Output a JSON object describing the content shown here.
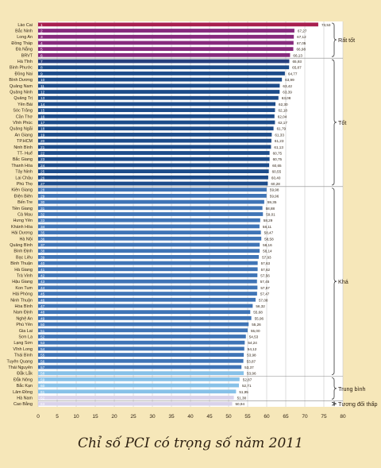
{
  "chart_data": {
    "type": "bar",
    "orientation": "horizontal",
    "title": "Chỉ số PCI có trọng số năm 2011",
    "xlim": [
      0,
      80
    ],
    "x_ticks": [
      "0",
      "5",
      "10",
      "15",
      "20",
      "25",
      "30",
      "35",
      "40",
      "45",
      "50",
      "55",
      "60",
      "65",
      "70",
      "75",
      "80"
    ],
    "grid": true,
    "categories": [
      "Lào Cai",
      "Bắc Ninh",
      "Long An",
      "Đồng Tháp",
      "Đà Nẵng",
      "BRVT",
      "Hà Tĩnh",
      "Bình Phước",
      "Đồng Nai",
      "Bình Dương",
      "Quảng Nam",
      "Quảng Ninh",
      "Quảng Trị",
      "Yên Bái",
      "Sóc Trăng",
      "Cần Thơ",
      "Vĩnh Phúc",
      "Quảng Ngãi",
      "An Giang",
      "TP.HCM",
      "Ninh Bình",
      "TT- Huế",
      "Bắc Giang",
      "Thanh Hóa",
      "Tây Ninh",
      "Lai Châu",
      "Phú Thọ",
      "Kiên Giang",
      "Điện Biên",
      "Bến Tre",
      "Tiền Giang",
      "Cà Mau",
      "Hưng Yên",
      "Khánh Hòa",
      "Hải Dương",
      "Hà Nội",
      "Quảng Bình",
      "Bình Định",
      "Bạc Liêu",
      "Bình Thuận",
      "Hà Giang",
      "Trà Vinh",
      "Hậu Giang",
      "Kon Tum",
      "Hải Phòng",
      "Ninh Thuận",
      "Hòa Bình",
      "Nam Định",
      "Nghệ An",
      "Phú Yên",
      "Gia Lai",
      "Sơn La",
      "Lạng Sơn",
      "Vĩnh Long",
      "Thái Bình",
      "Tuyên Quang",
      "Thái Nguyên",
      "Đắk Lắk",
      "Đắk Nông",
      "Bắc Kạn",
      "Lâm Đồng",
      "Hà Nam",
      "Cao Bằng"
    ],
    "ranks": [
      "1",
      "2",
      "3",
      "4",
      "5",
      "6",
      "7",
      "8",
      "9",
      "10",
      "11",
      "12",
      "13",
      "14",
      "15",
      "16",
      "17",
      "18",
      "19",
      "20",
      "21",
      "22",
      "23",
      "24",
      "25",
      "26",
      "27",
      "28",
      "29",
      "30",
      "31",
      "32",
      "33",
      "34",
      "35",
      "36",
      "37",
      "38",
      "39",
      "40",
      "41",
      "42",
      "43",
      "44",
      "45",
      "46",
      "47",
      "48",
      "49",
      "50",
      "51",
      "52",
      "53",
      "54",
      "55",
      "56",
      "57",
      "58",
      "59",
      "60",
      "61",
      "62",
      "63"
    ],
    "values": [
      73.53,
      67.27,
      67.12,
      67.05,
      66.98,
      66.13,
      65.93,
      65.87,
      64.77,
      63.99,
      63.42,
      63.39,
      63.08,
      62.3,
      62.18,
      62.04,
      62.17,
      61.79,
      61.33,
      61.23,
      61.13,
      60.75,
      60.75,
      60.65,
      60.55,
      60.4,
      60.28,
      59.98,
      59.96,
      59.35,
      58.88,
      59.01,
      58.29,
      58.11,
      58.47,
      58.58,
      58.16,
      58.14,
      57.93,
      57.63,
      57.62,
      57.56,
      57.45,
      57.57,
      57.47,
      57.08,
      56.32,
      55.68,
      55.96,
      55.26,
      55.0,
      54.53,
      54.24,
      54.12,
      53.98,
      53.87,
      53.37,
      53.96,
      52.87,
      52.71,
      51.95,
      51.38,
      50.94
    ],
    "value_labels": [
      "73,53",
      "67,27",
      "67,12",
      "67,05",
      "66,98",
      "66,13",
      "65,93",
      "65,87",
      "64,77",
      "63,99",
      "63,42",
      "63,39",
      "63,08",
      "62,30",
      "62,18",
      "62,04",
      "62,17",
      "61,79",
      "61,33",
      "61,23",
      "61,13",
      "60,75",
      "60,75",
      "60,65",
      "60,55",
      "60,40",
      "60,28",
      "59,98",
      "59,96",
      "59,35",
      "58,88",
      "59,01",
      "58,29",
      "58,11",
      "58,47",
      "58,58",
      "58,16",
      "58,14",
      "57,93",
      "57,63",
      "57,62",
      "57,56",
      "57,45",
      "57,57",
      "57,47",
      "57,08",
      "56,32",
      "55,68",
      "55,96",
      "55,26",
      "55,00",
      "54,53",
      "54,24",
      "54,12",
      "53,98",
      "53,87",
      "53,37",
      "53,96",
      "52,87",
      "52,71",
      "51,95",
      "51,38",
      "50,94"
    ],
    "bar_colors": [
      "#a8204f",
      "#872a7d",
      "#872a7d",
      "#872a7d",
      "#872a7d",
      "#872a7d",
      "#273f7e",
      "#1d4c8a",
      "#1d4c8a",
      "#1d4c8a",
      "#1d4c8a",
      "#1d4c8a",
      "#1d4c8a",
      "#1d4c8a",
      "#1d4c8a",
      "#1d4c8a",
      "#1d4c8a",
      "#1d4c8a",
      "#1d4c8a",
      "#1d4c8a",
      "#1d4c8a",
      "#1d4c8a",
      "#1d4c8a",
      "#1d4c8a",
      "#1d4c8a",
      "#1d4c8a",
      "#1d4c8a",
      "#3f74b6",
      "#3f74b6",
      "#3f74b6",
      "#3f74b6",
      "#3f74b6",
      "#3f74b6",
      "#3f74b6",
      "#3f74b6",
      "#3f74b6",
      "#3f74b6",
      "#3f74b6",
      "#3f74b6",
      "#3f74b6",
      "#3f74b6",
      "#3f74b6",
      "#3f74b6",
      "#3f74b6",
      "#3f74b6",
      "#3f74b6",
      "#3f74b6",
      "#3f74b6",
      "#3f74b6",
      "#3f74b6",
      "#3f74b6",
      "#3f74b6",
      "#3f74b6",
      "#3f74b6",
      "#3f74b6",
      "#3f74b6",
      "#3f74b6",
      "#87c1e8",
      "#87c1e8",
      "#87c1e8",
      "#87c1e8",
      "#d9d2ea",
      "#d9d2ea"
    ],
    "groups": [
      {
        "label": "Rất tốt",
        "start": 1,
        "end": 6
      },
      {
        "label": "Tốt",
        "start": 7,
        "end": 27
      },
      {
        "label": "Khá",
        "start": 28,
        "end": 58
      },
      {
        "label": "Trung bình",
        "start": 59,
        "end": 62
      },
      {
        "label": "Tương đối thấp",
        "start": 63,
        "end": 63
      }
    ],
    "colors": {
      "plot_bg": "#ffffff",
      "page_bg": "#f6e7b9",
      "grid": "#cfcfcf",
      "text": "#2b1e10"
    }
  }
}
